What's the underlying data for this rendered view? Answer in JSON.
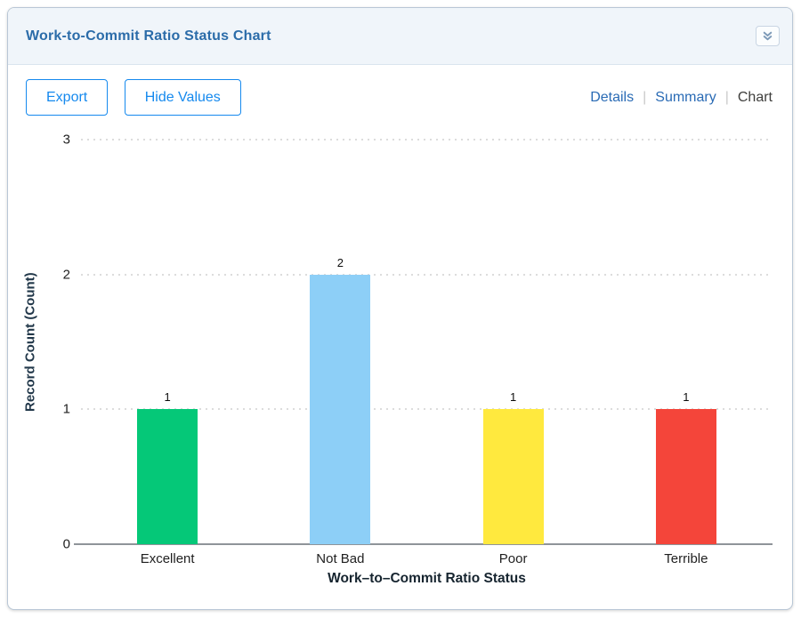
{
  "header": {
    "title": "Work-to-Commit Ratio Status Chart"
  },
  "toolbar": {
    "export_label": "Export",
    "hide_values_label": "Hide Values",
    "separator": "|",
    "views": [
      {
        "label": "Details",
        "active": false
      },
      {
        "label": "Summary",
        "active": false
      },
      {
        "label": "Chart",
        "active": true
      }
    ]
  },
  "chart_data": {
    "type": "bar",
    "title": "Work-to-Commit Ratio Status Chart",
    "categories": [
      "Excellent",
      "Not Bad",
      "Poor",
      "Terrible"
    ],
    "values": [
      1,
      2,
      1,
      1
    ],
    "bar_colors": [
      "#05c878",
      "#8dcff7",
      "#ffe93e",
      "#f4453a"
    ],
    "xlabel": "Work–to–Commit Ratio Status",
    "ylabel": "Record Count (Count)",
    "ylim": [
      0,
      3
    ],
    "yticks": [
      0,
      1,
      2,
      3
    ],
    "grid": "horizontal-dotted",
    "legend": "none"
  }
}
